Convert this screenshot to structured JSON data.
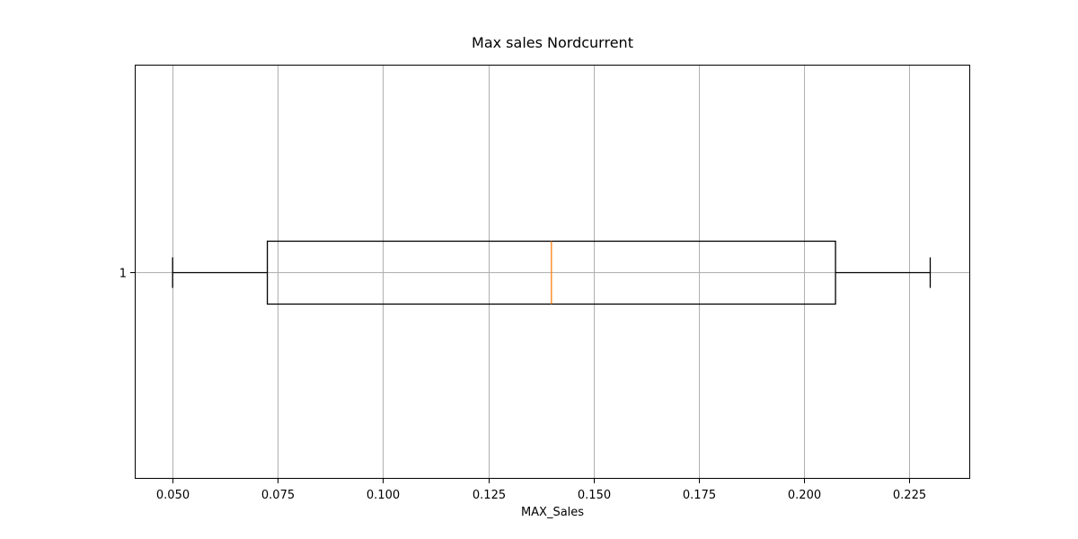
{
  "chart_data": {
    "type": "boxplot",
    "orientation": "horizontal",
    "title": "Max sales Nordcurrent",
    "xlabel": "MAX_Sales",
    "ylabel": "",
    "xlim": [
      0.041,
      0.2395
    ],
    "ylim": [
      0.5,
      1.5
    ],
    "grid": true,
    "x_ticks": [
      0.05,
      0.075,
      0.1,
      0.125,
      0.15,
      0.175,
      0.2,
      0.225
    ],
    "x_tick_labels": [
      "0.050",
      "0.075",
      "0.100",
      "0.125",
      "0.150",
      "0.175",
      "0.200",
      "0.225"
    ],
    "y_tick_labels": [
      "1"
    ],
    "boxes": [
      {
        "position": 1,
        "whisker_low": 0.05,
        "q1": 0.0725,
        "median": 0.14,
        "q3": 0.2075,
        "whisker_high": 0.23
      }
    ],
    "colors": {
      "box": "#000000",
      "median": "#ff7f0e",
      "grid": "#b0b0b0"
    }
  }
}
